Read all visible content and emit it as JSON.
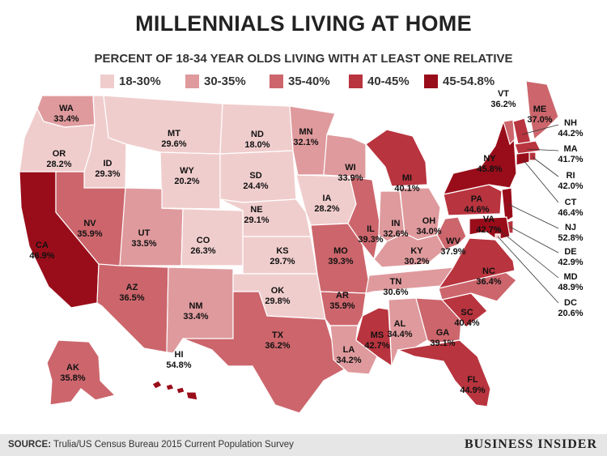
{
  "title": "MILLENNIALS LIVING AT HOME",
  "subtitle": "PERCENT OF 18-34 YEAR OLDS LIVING WITH AT LEAST ONE RELATIVE",
  "legend": [
    {
      "label": "18-30%",
      "color": "#f0cdcd"
    },
    {
      "label": "30-35%",
      "color": "#df9a9d"
    },
    {
      "label": "35-40%",
      "color": "#cc666c"
    },
    {
      "label": "40-45%",
      "color": "#b8343e"
    },
    {
      "label": "45-54.8%",
      "color": "#990d1a"
    }
  ],
  "states": [
    {
      "abbr": "WA",
      "value": "33.4%",
      "pct": 33.4
    },
    {
      "abbr": "OR",
      "value": "28.2%",
      "pct": 28.2
    },
    {
      "abbr": "CA",
      "value": "46.9%",
      "pct": 46.9
    },
    {
      "abbr": "ID",
      "value": "29.3%",
      "pct": 29.3
    },
    {
      "abbr": "NV",
      "value": "35.9%",
      "pct": 35.9
    },
    {
      "abbr": "MT",
      "value": "29.6%",
      "pct": 29.6
    },
    {
      "abbr": "WY",
      "value": "20.2%",
      "pct": 20.2
    },
    {
      "abbr": "UT",
      "value": "33.5%",
      "pct": 33.5
    },
    {
      "abbr": "AZ",
      "value": "36.5%",
      "pct": 36.5
    },
    {
      "abbr": "CO",
      "value": "26.3%",
      "pct": 26.3
    },
    {
      "abbr": "NM",
      "value": "33.4%",
      "pct": 33.4
    },
    {
      "abbr": "ND",
      "value": "18.0%",
      "pct": 18.0
    },
    {
      "abbr": "SD",
      "value": "24.4%",
      "pct": 24.4
    },
    {
      "abbr": "NE",
      "value": "29.1%",
      "pct": 29.1
    },
    {
      "abbr": "KS",
      "value": "29.7%",
      "pct": 29.7
    },
    {
      "abbr": "OK",
      "value": "29.8%",
      "pct": 29.8
    },
    {
      "abbr": "TX",
      "value": "36.2%",
      "pct": 36.2
    },
    {
      "abbr": "MN",
      "value": "32.1%",
      "pct": 32.1
    },
    {
      "abbr": "IA",
      "value": "28.2%",
      "pct": 28.2
    },
    {
      "abbr": "MO",
      "value": "39.3%",
      "pct": 39.3
    },
    {
      "abbr": "AR",
      "value": "35.9%",
      "pct": 35.9
    },
    {
      "abbr": "LA",
      "value": "34.2%",
      "pct": 34.2
    },
    {
      "abbr": "WI",
      "value": "33.9%",
      "pct": 33.9
    },
    {
      "abbr": "IL",
      "value": "39.3%",
      "pct": 39.3
    },
    {
      "abbr": "MI",
      "value": "40.1%",
      "pct": 40.1
    },
    {
      "abbr": "IN",
      "value": "32.6%",
      "pct": 32.6
    },
    {
      "abbr": "OH",
      "value": "34.0%",
      "pct": 34.0
    },
    {
      "abbr": "KY",
      "value": "30.2%",
      "pct": 30.2
    },
    {
      "abbr": "TN",
      "value": "30.6%",
      "pct": 30.6
    },
    {
      "abbr": "MS",
      "value": "42.7%",
      "pct": 42.7
    },
    {
      "abbr": "AL",
      "value": "34.4%",
      "pct": 34.4
    },
    {
      "abbr": "GA",
      "value": "39.1%",
      "pct": 39.1
    },
    {
      "abbr": "FL",
      "value": "44.9%",
      "pct": 44.9
    },
    {
      "abbr": "SC",
      "value": "40.4%",
      "pct": 40.4
    },
    {
      "abbr": "NC",
      "value": "36.4%",
      "pct": 36.4
    },
    {
      "abbr": "VA",
      "value": "42.7%",
      "pct": 42.7
    },
    {
      "abbr": "WV",
      "value": "37.9%",
      "pct": 37.9
    },
    {
      "abbr": "PA",
      "value": "44.6%",
      "pct": 44.6
    },
    {
      "abbr": "NY",
      "value": "45.8%",
      "pct": 45.8
    },
    {
      "abbr": "VT",
      "value": "36.2%",
      "pct": 36.2
    },
    {
      "abbr": "ME",
      "value": "37.0%",
      "pct": 37.0
    },
    {
      "abbr": "NH",
      "value": "44.2%",
      "pct": 44.2
    },
    {
      "abbr": "MA",
      "value": "41.7%",
      "pct": 41.7
    },
    {
      "abbr": "RI",
      "value": "42.0%",
      "pct": 42.0
    },
    {
      "abbr": "CT",
      "value": "46.4%",
      "pct": 46.4
    },
    {
      "abbr": "NJ",
      "value": "52.8%",
      "pct": 52.8
    },
    {
      "abbr": "DE",
      "value": "42.9%",
      "pct": 42.9
    },
    {
      "abbr": "MD",
      "value": "48.9%",
      "pct": 48.9
    },
    {
      "abbr": "DC",
      "value": "20.6%",
      "pct": 20.6
    },
    {
      "abbr": "AK",
      "value": "35.8%",
      "pct": 35.8
    },
    {
      "abbr": "HI",
      "value": "54.8%",
      "pct": 54.8
    }
  ],
  "footer": {
    "source_label": "SOURCE:",
    "source_text": "Trulia/US Census Bureau 2015 Current Population Survey",
    "brand": "BUSINESS INSIDER"
  }
}
